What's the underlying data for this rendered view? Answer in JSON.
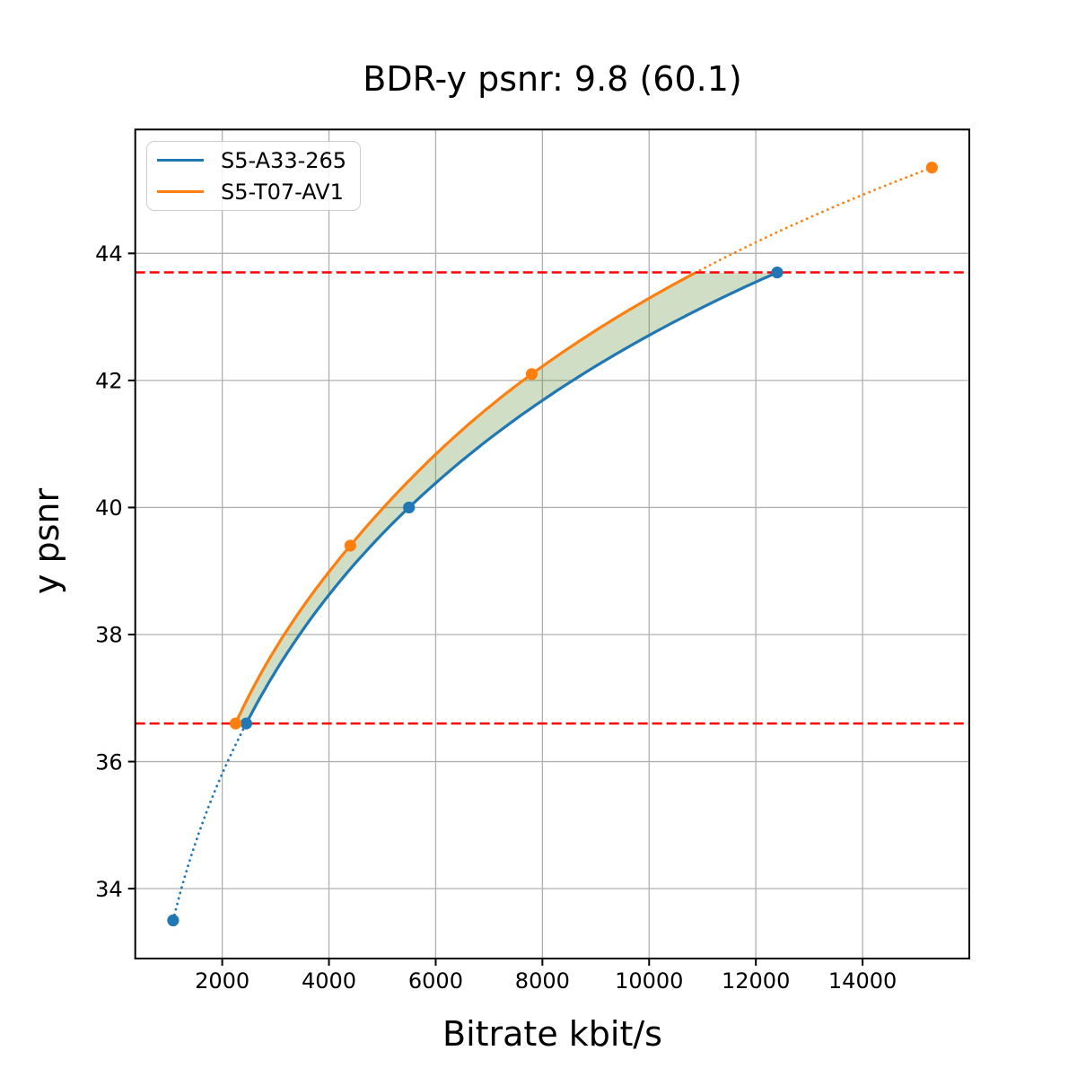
{
  "chart_data": {
    "type": "line",
    "title": "BDR-y psnr: 9.8 (60.1)",
    "xlabel": "Bitrate kbit/s",
    "ylabel": "y psnr",
    "xlim": [
      370,
      16000
    ],
    "ylim": [
      32.9,
      45.95
    ],
    "xticks": [
      2000,
      4000,
      6000,
      8000,
      10000,
      12000,
      14000
    ],
    "yticks": [
      34,
      36,
      38,
      40,
      42,
      44
    ],
    "grid": true,
    "grid_color": "#b0b0b0",
    "legend_position": "upper left",
    "series": [
      {
        "name": "S5-A33-265",
        "color": "#1f77b4",
        "points": [
          [
            1080,
            33.5
          ],
          [
            2450,
            36.6
          ],
          [
            5500,
            40.0
          ],
          [
            12400,
            43.7
          ]
        ]
      },
      {
        "name": "S5-T07-AV1",
        "color": "#ff7f0e",
        "points": [
          [
            2250,
            36.6
          ],
          [
            4400,
            39.4
          ],
          [
            7800,
            42.1
          ],
          [
            15300,
            45.35
          ]
        ]
      }
    ],
    "hlines": {
      "color": "#ff0000",
      "style": "dashed",
      "values": [
        36.6,
        43.7
      ]
    },
    "fill_between": {
      "top_series": 1,
      "bottom_series": 0,
      "color": "#558833",
      "opacity": 0.28,
      "clip_psnr": [
        36.6,
        43.7
      ]
    }
  }
}
